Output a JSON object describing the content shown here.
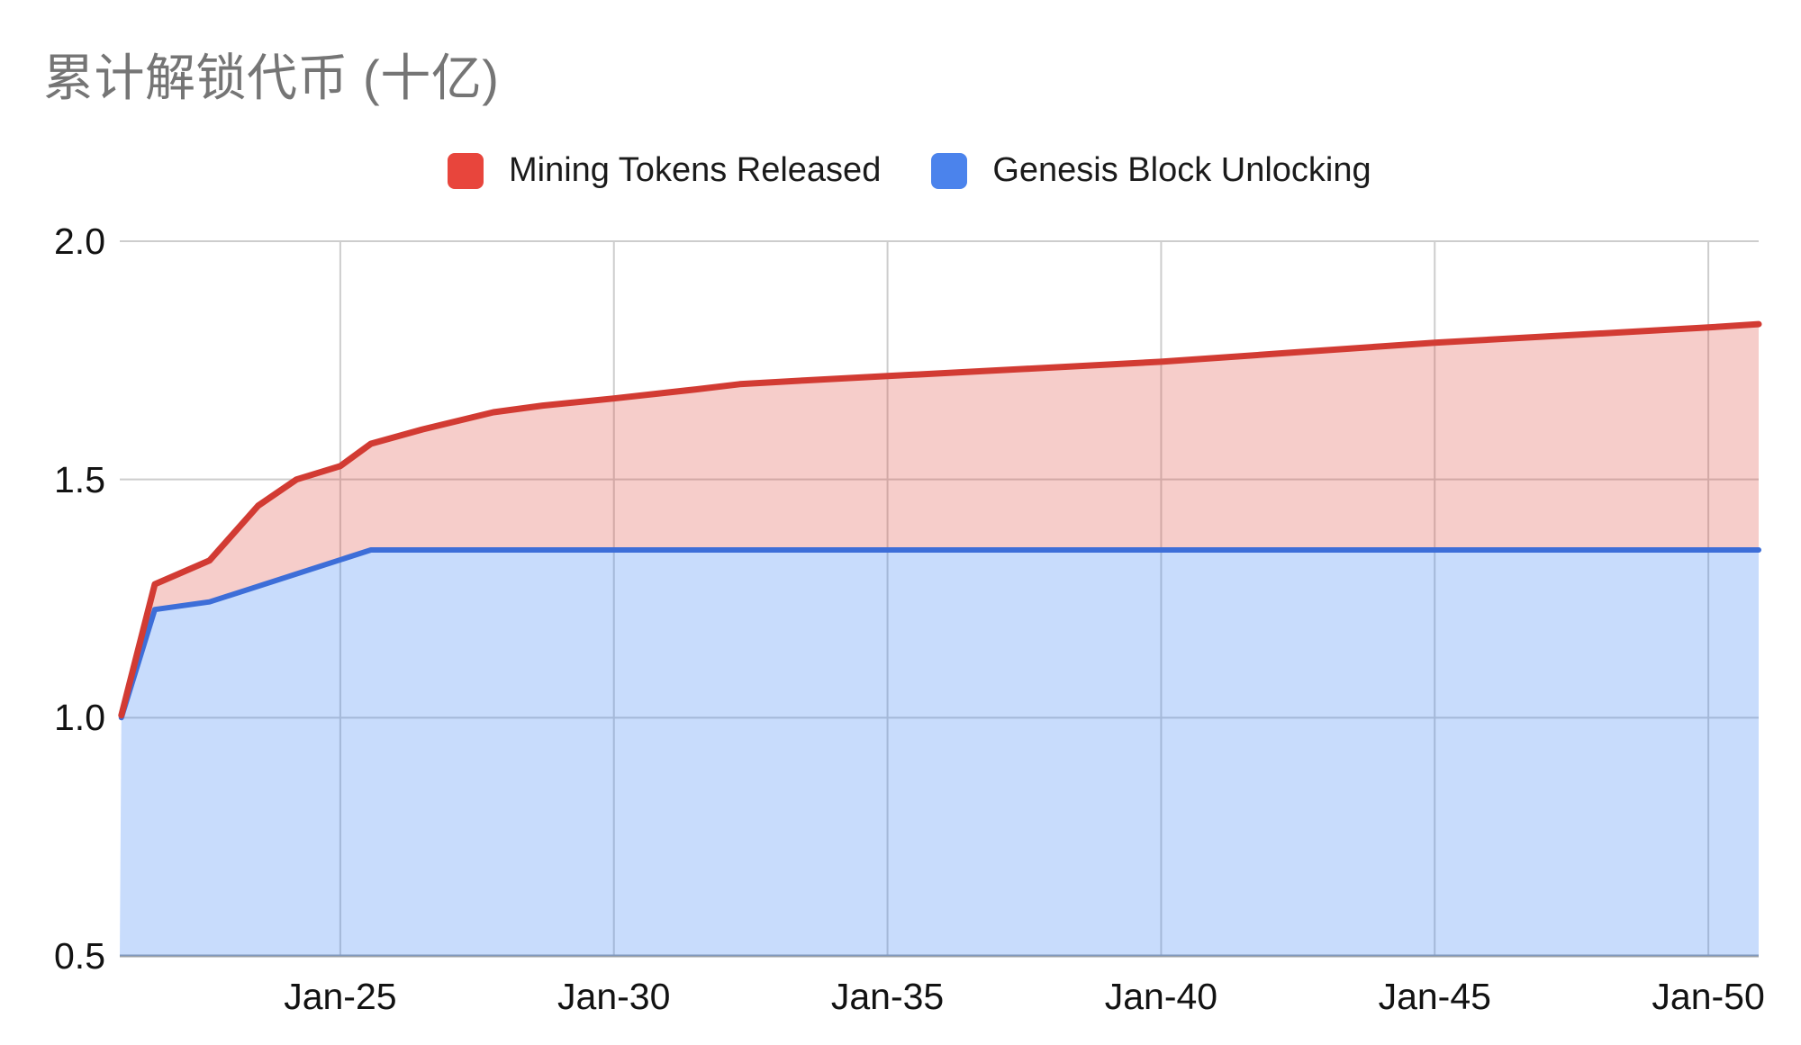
{
  "title": "累计解锁代币 (十亿)",
  "legend": [
    {
      "label": "Mining Tokens Released",
      "color": "#E8453C"
    },
    {
      "label": "Genesis Block Unlocking",
      "color": "#4B83EC"
    }
  ],
  "chart_data": {
    "type": "area",
    "title": "累计解锁代币 (十亿)",
    "xlabel": "",
    "ylabel": "",
    "x_range": [
      2020.97,
      2050.92
    ],
    "y_range": [
      0.5,
      2.0
    ],
    "grid": true,
    "legend_position": "top",
    "grid_color": "#CDCDCD",
    "axis_color": "#9AA0A6",
    "x_ticks": [
      {
        "year": 2025,
        "label": "Jan-25"
      },
      {
        "year": 2030,
        "label": "Jan-30"
      },
      {
        "year": 2035,
        "label": "Jan-35"
      },
      {
        "year": 2040,
        "label": "Jan-40"
      },
      {
        "year": 2045,
        "label": "Jan-45"
      },
      {
        "year": 2050,
        "label": "Jan-50"
      }
    ],
    "y_ticks": [
      {
        "value": 0.5,
        "label": "0.5"
      },
      {
        "value": 1.0,
        "label": "1.0"
      },
      {
        "value": 1.5,
        "label": "1.5"
      },
      {
        "value": 2.0,
        "label": "2.0"
      }
    ],
    "note": "Stacked cumulative area chart (billions of tokens). Blue series fills from baseline 0.5 up to its line; red series fills the band between the blue line and the red top line, so the red line traces total cumulative unlocked tokens (Genesis + Mining).",
    "series": [
      {
        "name": "Genesis Block Unlocking",
        "role": "lower-area",
        "line_color": "#3D6ED8",
        "fill_color": "rgba(66,133,244,0.29)",
        "points": [
          [
            2021.0,
            1.0
          ],
          [
            2021.61,
            1.227
          ],
          [
            2022.61,
            1.243
          ],
          [
            2025.56,
            1.352
          ],
          [
            2050.92,
            1.352
          ]
        ]
      },
      {
        "name": "Mining Tokens Released",
        "role": "upper-band-top",
        "line_color": "#D23B33",
        "fill_color": "rgba(221,75,66,0.28)",
        "points": [
          [
            2021.0,
            1.005
          ],
          [
            2021.61,
            1.28
          ],
          [
            2022.61,
            1.33
          ],
          [
            2023.5,
            1.445
          ],
          [
            2024.2,
            1.5
          ],
          [
            2025.0,
            1.528
          ],
          [
            2025.56,
            1.575
          ],
          [
            2026.5,
            1.605
          ],
          [
            2027.8,
            1.641
          ],
          [
            2028.7,
            1.655
          ],
          [
            2030.0,
            1.67
          ],
          [
            2031.5,
            1.689
          ],
          [
            2032.3,
            1.7
          ],
          [
            2033.5,
            1.708
          ],
          [
            2035.0,
            1.717
          ],
          [
            2037.5,
            1.732
          ],
          [
            2040.0,
            1.747
          ],
          [
            2042.5,
            1.767
          ],
          [
            2045.0,
            1.787
          ],
          [
            2047.5,
            1.803
          ],
          [
            2050.0,
            1.819
          ],
          [
            2050.92,
            1.826
          ]
        ]
      }
    ]
  }
}
